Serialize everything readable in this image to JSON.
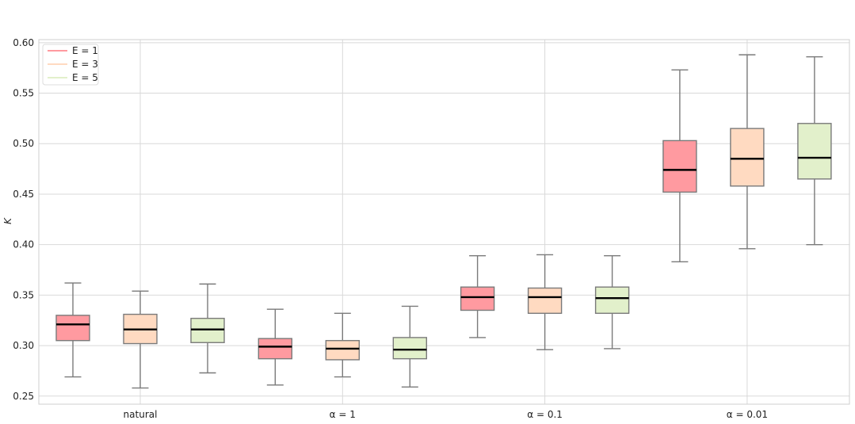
{
  "chart_data": {
    "type": "box",
    "title": "",
    "xlabel": "",
    "ylabel": "K",
    "ylim": [
      0.242,
      0.603
    ],
    "yticks": [
      0.25,
      0.3,
      0.35,
      0.4,
      0.45,
      0.5,
      0.55,
      0.6
    ],
    "ytick_labels": [
      "0.25",
      "0.30",
      "0.35",
      "0.40",
      "0.45",
      "0.50",
      "0.55",
      "0.60"
    ],
    "categories": [
      "natural",
      "α = 1",
      "α = 0.1",
      "α = 0.01"
    ],
    "grid": true,
    "legend_position": "top-left",
    "series": [
      {
        "name": "E = 1",
        "color": "#ff9aa0",
        "boxes": [
          {
            "whislo": 0.269,
            "q1": 0.305,
            "med": 0.321,
            "q3": 0.33,
            "whishi": 0.362
          },
          {
            "whislo": 0.261,
            "q1": 0.287,
            "med": 0.299,
            "q3": 0.307,
            "whishi": 0.336
          },
          {
            "whislo": 0.308,
            "q1": 0.335,
            "med": 0.348,
            "q3": 0.358,
            "whishi": 0.389
          },
          {
            "whislo": 0.383,
            "q1": 0.452,
            "med": 0.474,
            "q3": 0.503,
            "whishi": 0.573
          }
        ]
      },
      {
        "name": "E = 3",
        "color": "#ffdac1",
        "boxes": [
          {
            "whislo": 0.258,
            "q1": 0.302,
            "med": 0.316,
            "q3": 0.331,
            "whishi": 0.354
          },
          {
            "whislo": 0.269,
            "q1": 0.286,
            "med": 0.297,
            "q3": 0.305,
            "whishi": 0.332
          },
          {
            "whislo": 0.296,
            "q1": 0.332,
            "med": 0.348,
            "q3": 0.357,
            "whishi": 0.39
          },
          {
            "whislo": 0.396,
            "q1": 0.458,
            "med": 0.485,
            "q3": 0.515,
            "whishi": 0.588
          }
        ]
      },
      {
        "name": "E = 5",
        "color": "#e2f0cb",
        "boxes": [
          {
            "whislo": 0.273,
            "q1": 0.303,
            "med": 0.316,
            "q3": 0.327,
            "whishi": 0.361
          },
          {
            "whislo": 0.259,
            "q1": 0.287,
            "med": 0.296,
            "q3": 0.308,
            "whishi": 0.339
          },
          {
            "whislo": 0.297,
            "q1": 0.332,
            "med": 0.347,
            "q3": 0.358,
            "whishi": 0.389
          },
          {
            "whislo": 0.4,
            "q1": 0.465,
            "med": 0.486,
            "q3": 0.52,
            "whishi": 0.586
          }
        ]
      }
    ]
  }
}
